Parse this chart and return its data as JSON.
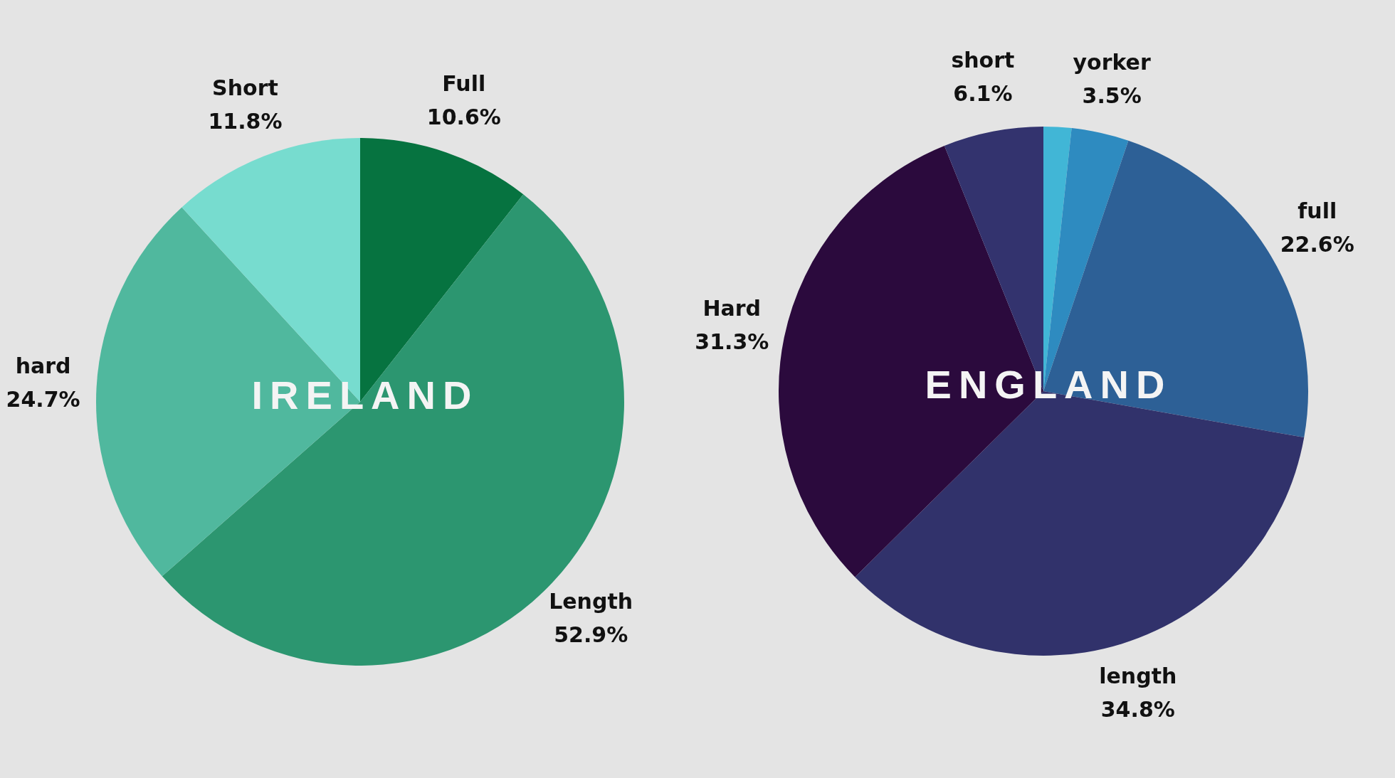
{
  "chart_data": [
    {
      "type": "pie",
      "title": "IRELAND",
      "categories": [
        "Full",
        "Length",
        "hard",
        "Short"
      ],
      "values": [
        10.6,
        52.9,
        24.7,
        11.8
      ],
      "colors": [
        "#067340",
        "#2c9670",
        "#50b89e",
        "#77dccf"
      ],
      "value_labels": [
        "10.6%",
        "52.9%",
        "24.7%",
        "11.8%"
      ],
      "legend": false
    },
    {
      "type": "pie",
      "title": "ENGLAND",
      "categories": [
        null,
        "yorker",
        "full",
        "length",
        "Hard",
        "short"
      ],
      "values": [
        1.7,
        3.5,
        22.6,
        34.8,
        31.3,
        6.1
      ],
      "colors": [
        "#41b6d6",
        "#2e8bc0",
        "#2d6096",
        "#31326b",
        "#2b0a3d",
        "#33336e"
      ],
      "value_labels": [
        null,
        "3.5%",
        "22.6%",
        "34.8%",
        "31.3%",
        "6.1%"
      ],
      "legend": false
    }
  ]
}
